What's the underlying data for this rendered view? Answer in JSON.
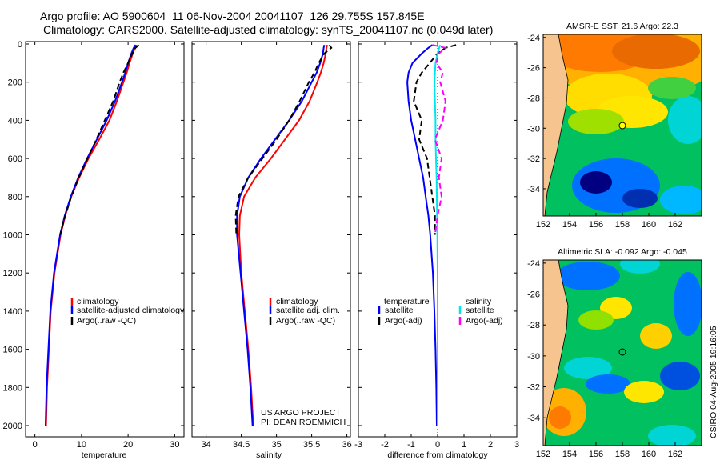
{
  "header": {
    "line1": "Argo profile: AO 5900604_11 06-Nov-2004 20041107_126 29.755S 157.845E",
    "line2": "Climatology: CARS2000. Satellite-adjusted climatology: synTS_20041107.nc (0.049d later)"
  },
  "footer": {
    "project": "US ARGO PROJECT",
    "pi": "PI: DEAN ROEMMICH",
    "stamp": "CSIRO 04-Aug-2005 19:16:05"
  },
  "colors": {
    "climatology": "#ff0000",
    "satellite": "#0000ff",
    "argo": "#000000",
    "cyan": "#00e5ee",
    "magenta": "#ff00ff"
  },
  "chart_data": [
    {
      "type": "line",
      "xlabel": "temperature",
      "xlim": [
        -2,
        32
      ],
      "xticks": [
        0,
        10,
        20,
        30
      ],
      "ylim": [
        2050,
        0
      ],
      "yticks": [
        0,
        200,
        400,
        600,
        800,
        1000,
        1200,
        1400,
        1600,
        1800,
        2000
      ],
      "legend": [
        "climatology",
        "satellite-adjusted climatology",
        "Argo(..raw -QC)"
      ],
      "depth": [
        5,
        20,
        50,
        100,
        150,
        200,
        300,
        400,
        500,
        600,
        700,
        800,
        900,
        1000,
        1200,
        1400,
        1600,
        1800,
        2000
      ],
      "series": [
        {
          "name": "climatology",
          "color": "#ff0000",
          "dash": false,
          "values": [
            21.8,
            21.5,
            21.0,
            20.3,
            19.7,
            19.0,
            17.6,
            16.0,
            13.8,
            11.5,
            9.5,
            7.8,
            6.5,
            5.5,
            4.2,
            3.4,
            3.0,
            2.6,
            2.4
          ]
        },
        {
          "name": "satellite",
          "color": "#0000ff",
          "dash": false,
          "values": [
            21.6,
            21.2,
            20.7,
            20.0,
            19.4,
            18.7,
            17.2,
            15.4,
            13.3,
            11.2,
            9.3,
            7.7,
            6.4,
            5.4,
            4.1,
            3.3,
            2.9,
            2.5,
            2.3
          ]
        },
        {
          "name": "Argo",
          "color": "#000000",
          "dash": true,
          "values": [
            22.3,
            21.6,
            20.9,
            20.0,
            19.0,
            18.2,
            16.8,
            15.0,
            13.2,
            11.3,
            9.4,
            7.8,
            6.5,
            5.4
          ]
        }
      ]
    },
    {
      "type": "line",
      "xlabel": "salinity",
      "xlim": [
        33.8,
        36.05
      ],
      "xticks": [
        34,
        34.5,
        35,
        35.5,
        36
      ],
      "ylim": [
        2050,
        0
      ],
      "legend": [
        "climatology",
        "satellite adj. clim.",
        "Argo(..raw -QC)"
      ],
      "depth": [
        5,
        20,
        50,
        100,
        150,
        200,
        300,
        400,
        500,
        600,
        700,
        800,
        900,
        1000,
        1200,
        1400,
        1600,
        1800,
        2000
      ],
      "series": [
        {
          "name": "climatology",
          "color": "#ff0000",
          "dash": false,
          "values": [
            35.72,
            35.71,
            35.7,
            35.67,
            35.63,
            35.58,
            35.47,
            35.32,
            35.12,
            34.92,
            34.7,
            34.54,
            34.48,
            34.47,
            34.5,
            34.55,
            34.6,
            34.64,
            34.67
          ]
        },
        {
          "name": "satellite",
          "color": "#0000ff",
          "dash": false,
          "values": [
            35.68,
            35.67,
            35.66,
            35.62,
            35.57,
            35.5,
            35.36,
            35.18,
            34.98,
            34.78,
            34.6,
            34.48,
            34.44,
            34.44,
            34.49,
            34.54,
            34.59,
            34.63,
            34.66
          ]
        },
        {
          "name": "Argo",
          "color": "#000000",
          "dash": true,
          "values": [
            35.75,
            35.78,
            35.68,
            35.6,
            35.54,
            35.46,
            35.33,
            35.18,
            35.0,
            34.8,
            34.6,
            34.46,
            34.42,
            34.43
          ]
        }
      ]
    },
    {
      "type": "line",
      "xlabel": "difference from climatology",
      "xlim": [
        -3,
        3
      ],
      "xticks": [
        -3,
        -2,
        -1,
        0,
        1,
        2,
        3
      ],
      "ylim": [
        2050,
        0
      ],
      "legend_left_title": "temperature",
      "legend_right_title": "salinity",
      "legend": [
        "satellite",
        "Argo(-adj)",
        "satellite",
        "Argo(-adj)"
      ],
      "depth": [
        5,
        20,
        50,
        100,
        150,
        200,
        300,
        400,
        500,
        600,
        700,
        800,
        900,
        1000,
        1200,
        1400,
        1600,
        1800,
        2000
      ],
      "series": [
        {
          "name": "temperature satellite",
          "color": "#0000ff",
          "dash": false,
          "values": [
            -0.2,
            -0.35,
            -0.6,
            -0.95,
            -1.1,
            -1.15,
            -1.1,
            -1.0,
            -0.85,
            -0.7,
            -0.55,
            -0.45,
            -0.35,
            -0.28,
            -0.18,
            -0.12,
            -0.08,
            -0.05,
            -0.03
          ]
        },
        {
          "name": "temperature Argo(-adj)",
          "color": "#000000",
          "dash": true,
          "values": [
            0.7,
            0.3,
            0.0,
            -0.3,
            -0.6,
            -0.8,
            -0.9,
            -0.6,
            -0.7,
            -0.4,
            -0.3,
            -0.2,
            -0.1,
            -0.1
          ]
        },
        {
          "name": "salinity satellite",
          "color": "#00e5ee",
          "dash": false,
          "values": [
            0.1,
            0.06,
            0.0,
            -0.08,
            -0.1,
            -0.12,
            -0.1,
            -0.08,
            -0.08,
            -0.06,
            -0.04,
            -0.03,
            -0.02,
            -0.01,
            0.0,
            0.0,
            0.0,
            0.0,
            0.0
          ]
        },
        {
          "name": "salinity Argo(-adj)",
          "color": "#ff00ff",
          "dash": true,
          "values": [
            -0.2,
            0.3,
            0.05,
            -0.05,
            0.2,
            0.1,
            0.3,
            0.2,
            -0.1,
            0.15,
            0.05,
            0.15,
            0.0,
            -0.1
          ]
        }
      ]
    }
  ],
  "maps": [
    {
      "title": "AMSR-E SST: 21.6 Argo: 22.3",
      "kind": "sst",
      "xticks": [
        152,
        154,
        156,
        158,
        160,
        162
      ],
      "yticks": [
        -24,
        -26,
        -28,
        -30,
        -32,
        -34
      ],
      "lon": [
        152,
        164
      ],
      "lat": [
        -23.8,
        -35.8
      ],
      "point": [
        157.845,
        -29.755
      ]
    },
    {
      "title": "Altimetric SLA: -0.092 Argo: -0.045",
      "kind": "sla",
      "xticks": [
        152,
        154,
        156,
        158,
        160,
        162
      ],
      "yticks": [
        -24,
        -26,
        -28,
        -30,
        -32,
        -34
      ],
      "lon": [
        152,
        164
      ],
      "lat": [
        -23.8,
        -35.8
      ],
      "point": [
        157.845,
        -29.755
      ]
    }
  ]
}
